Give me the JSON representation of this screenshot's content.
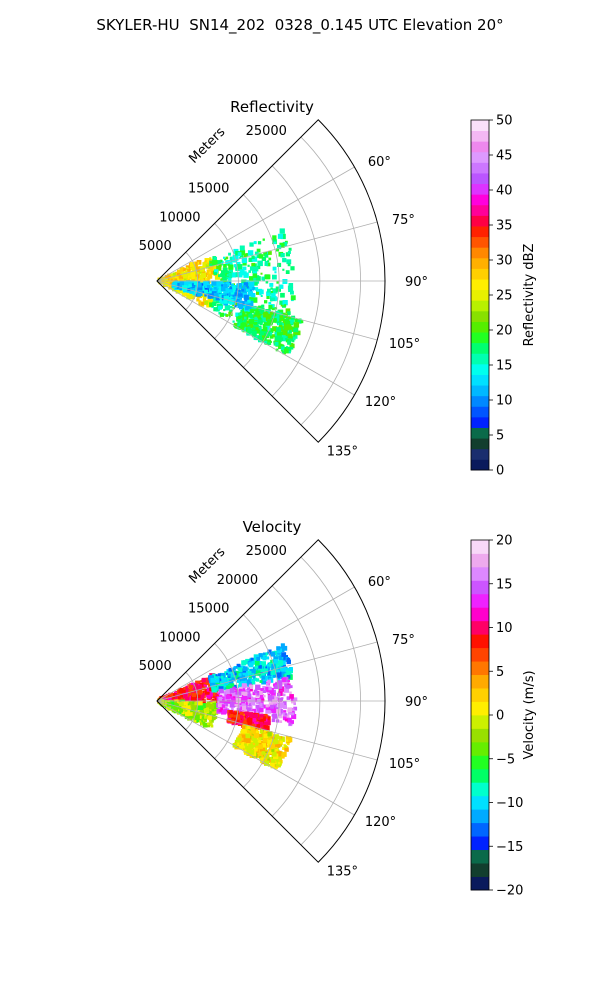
{
  "figure": {
    "title": "SKYLER-HU  SN14_202  0328_0.145 UTC Elevation 20°"
  },
  "chart_data": [
    {
      "type": "polar-sector",
      "title": "Reflectivity",
      "radial_label": "Meters",
      "radial_ticks": [
        5000,
        10000,
        15000,
        20000,
        25000
      ],
      "radial_tick_labels": [
        "5000",
        "10000",
        "15000",
        "20000",
        "25000"
      ],
      "angular_range_deg": [
        45,
        135
      ],
      "angular_ticks": [
        60,
        75,
        90,
        105,
        120,
        135
      ],
      "angular_tick_labels": [
        "60°",
        "75°",
        "90°",
        "105°",
        "120°",
        "135°"
      ],
      "grid": true,
      "colorbar": {
        "label": "Reflectivity dBZ",
        "range": [
          0,
          50
        ],
        "ticks": [
          0,
          5,
          10,
          15,
          20,
          25,
          30,
          35,
          40,
          45,
          50
        ],
        "tick_labels": [
          "0",
          "5",
          "10",
          "15",
          "20",
          "25",
          "30",
          "35",
          "40",
          "45",
          "50"
        ],
        "colors": [
          "#0a1a5c",
          "#1a2e6e",
          "#123e2e",
          "#0a6a4a",
          "#0022ff",
          "#0055ff",
          "#0088ff",
          "#00b8ff",
          "#00e0ff",
          "#00ffee",
          "#00ffb0",
          "#00ff70",
          "#22ff22",
          "#55ee00",
          "#88e000",
          "#b8f000",
          "#e8f000",
          "#ffee00",
          "#ffd000",
          "#ffb000",
          "#ff8800",
          "#ff5500",
          "#ff2200",
          "#ff0044",
          "#ff0099",
          "#ff00dd",
          "#dd33ff",
          "#bb55ff",
          "#cc77ff",
          "#dd99ff",
          "#ee88ee",
          "#f4b8f4",
          "#fbe0fb"
        ]
      },
      "echo_fields": [
        {
          "r_range": [
            300,
            7500
          ],
          "az_range": [
            65,
            118
          ],
          "value": 27
        },
        {
          "r_range": [
            7000,
            17000
          ],
          "az_range": [
            68,
            118
          ],
          "value": 17
        },
        {
          "r_range": [
            11000,
            18500
          ],
          "az_range": [
            105,
            120
          ],
          "value": 18
        },
        {
          "r_range": [
            2000,
            12000
          ],
          "az_range": [
            92,
            108
          ],
          "value": 12
        }
      ]
    },
    {
      "type": "polar-sector",
      "title": "Velocity",
      "radial_label": "Meters",
      "radial_ticks": [
        5000,
        10000,
        15000,
        20000,
        25000
      ],
      "radial_tick_labels": [
        "5000",
        "10000",
        "15000",
        "20000",
        "25000"
      ],
      "angular_range_deg": [
        45,
        135
      ],
      "angular_ticks": [
        60,
        75,
        90,
        105,
        120,
        135
      ],
      "angular_tick_labels": [
        "60°",
        "75°",
        "90°",
        "105°",
        "120°",
        "135°"
      ],
      "grid": true,
      "colorbar": {
        "label": "Velocity (m/s)",
        "range": [
          -20,
          20
        ],
        "ticks": [
          -20,
          -15,
          -10,
          -5,
          0,
          5,
          10,
          15,
          20
        ],
        "tick_labels": [
          "−20",
          "−15",
          "−10",
          "−5",
          "0",
          "5",
          "10",
          "15",
          "20"
        ],
        "colors": [
          "#0a1a5c",
          "#123e2e",
          "#0a6a4a",
          "#0022ff",
          "#0066ff",
          "#00aaff",
          "#00e0ff",
          "#00ffcc",
          "#00ff66",
          "#22ff22",
          "#66ee00",
          "#99e000",
          "#ccf000",
          "#ffee00",
          "#ffd000",
          "#ffaa00",
          "#ff7700",
          "#ff4400",
          "#ff1100",
          "#ff0066",
          "#ff00cc",
          "#ee22ff",
          "#cc55ff",
          "#dd88ff",
          "#eeaaee",
          "#f8d8f8"
        ]
      },
      "echo_fields": [
        {
          "r_range": [
            300,
            7500
          ],
          "az_range": [
            65,
            92
          ],
          "value": 9
        },
        {
          "r_range": [
            300,
            7500
          ],
          "az_range": [
            92,
            118
          ],
          "value": -2
        },
        {
          "r_range": [
            7000,
            17000
          ],
          "az_range": [
            66,
            80
          ],
          "value": -10
        },
        {
          "r_range": [
            7500,
            17000
          ],
          "az_range": [
            80,
            100
          ],
          "value": 15
        },
        {
          "r_range": [
            9000,
            14000
          ],
          "az_range": [
            98,
            106
          ],
          "value": 9
        },
        {
          "r_range": [
            11000,
            17000
          ],
          "az_range": [
            106,
            120
          ],
          "value": 1
        }
      ]
    }
  ]
}
